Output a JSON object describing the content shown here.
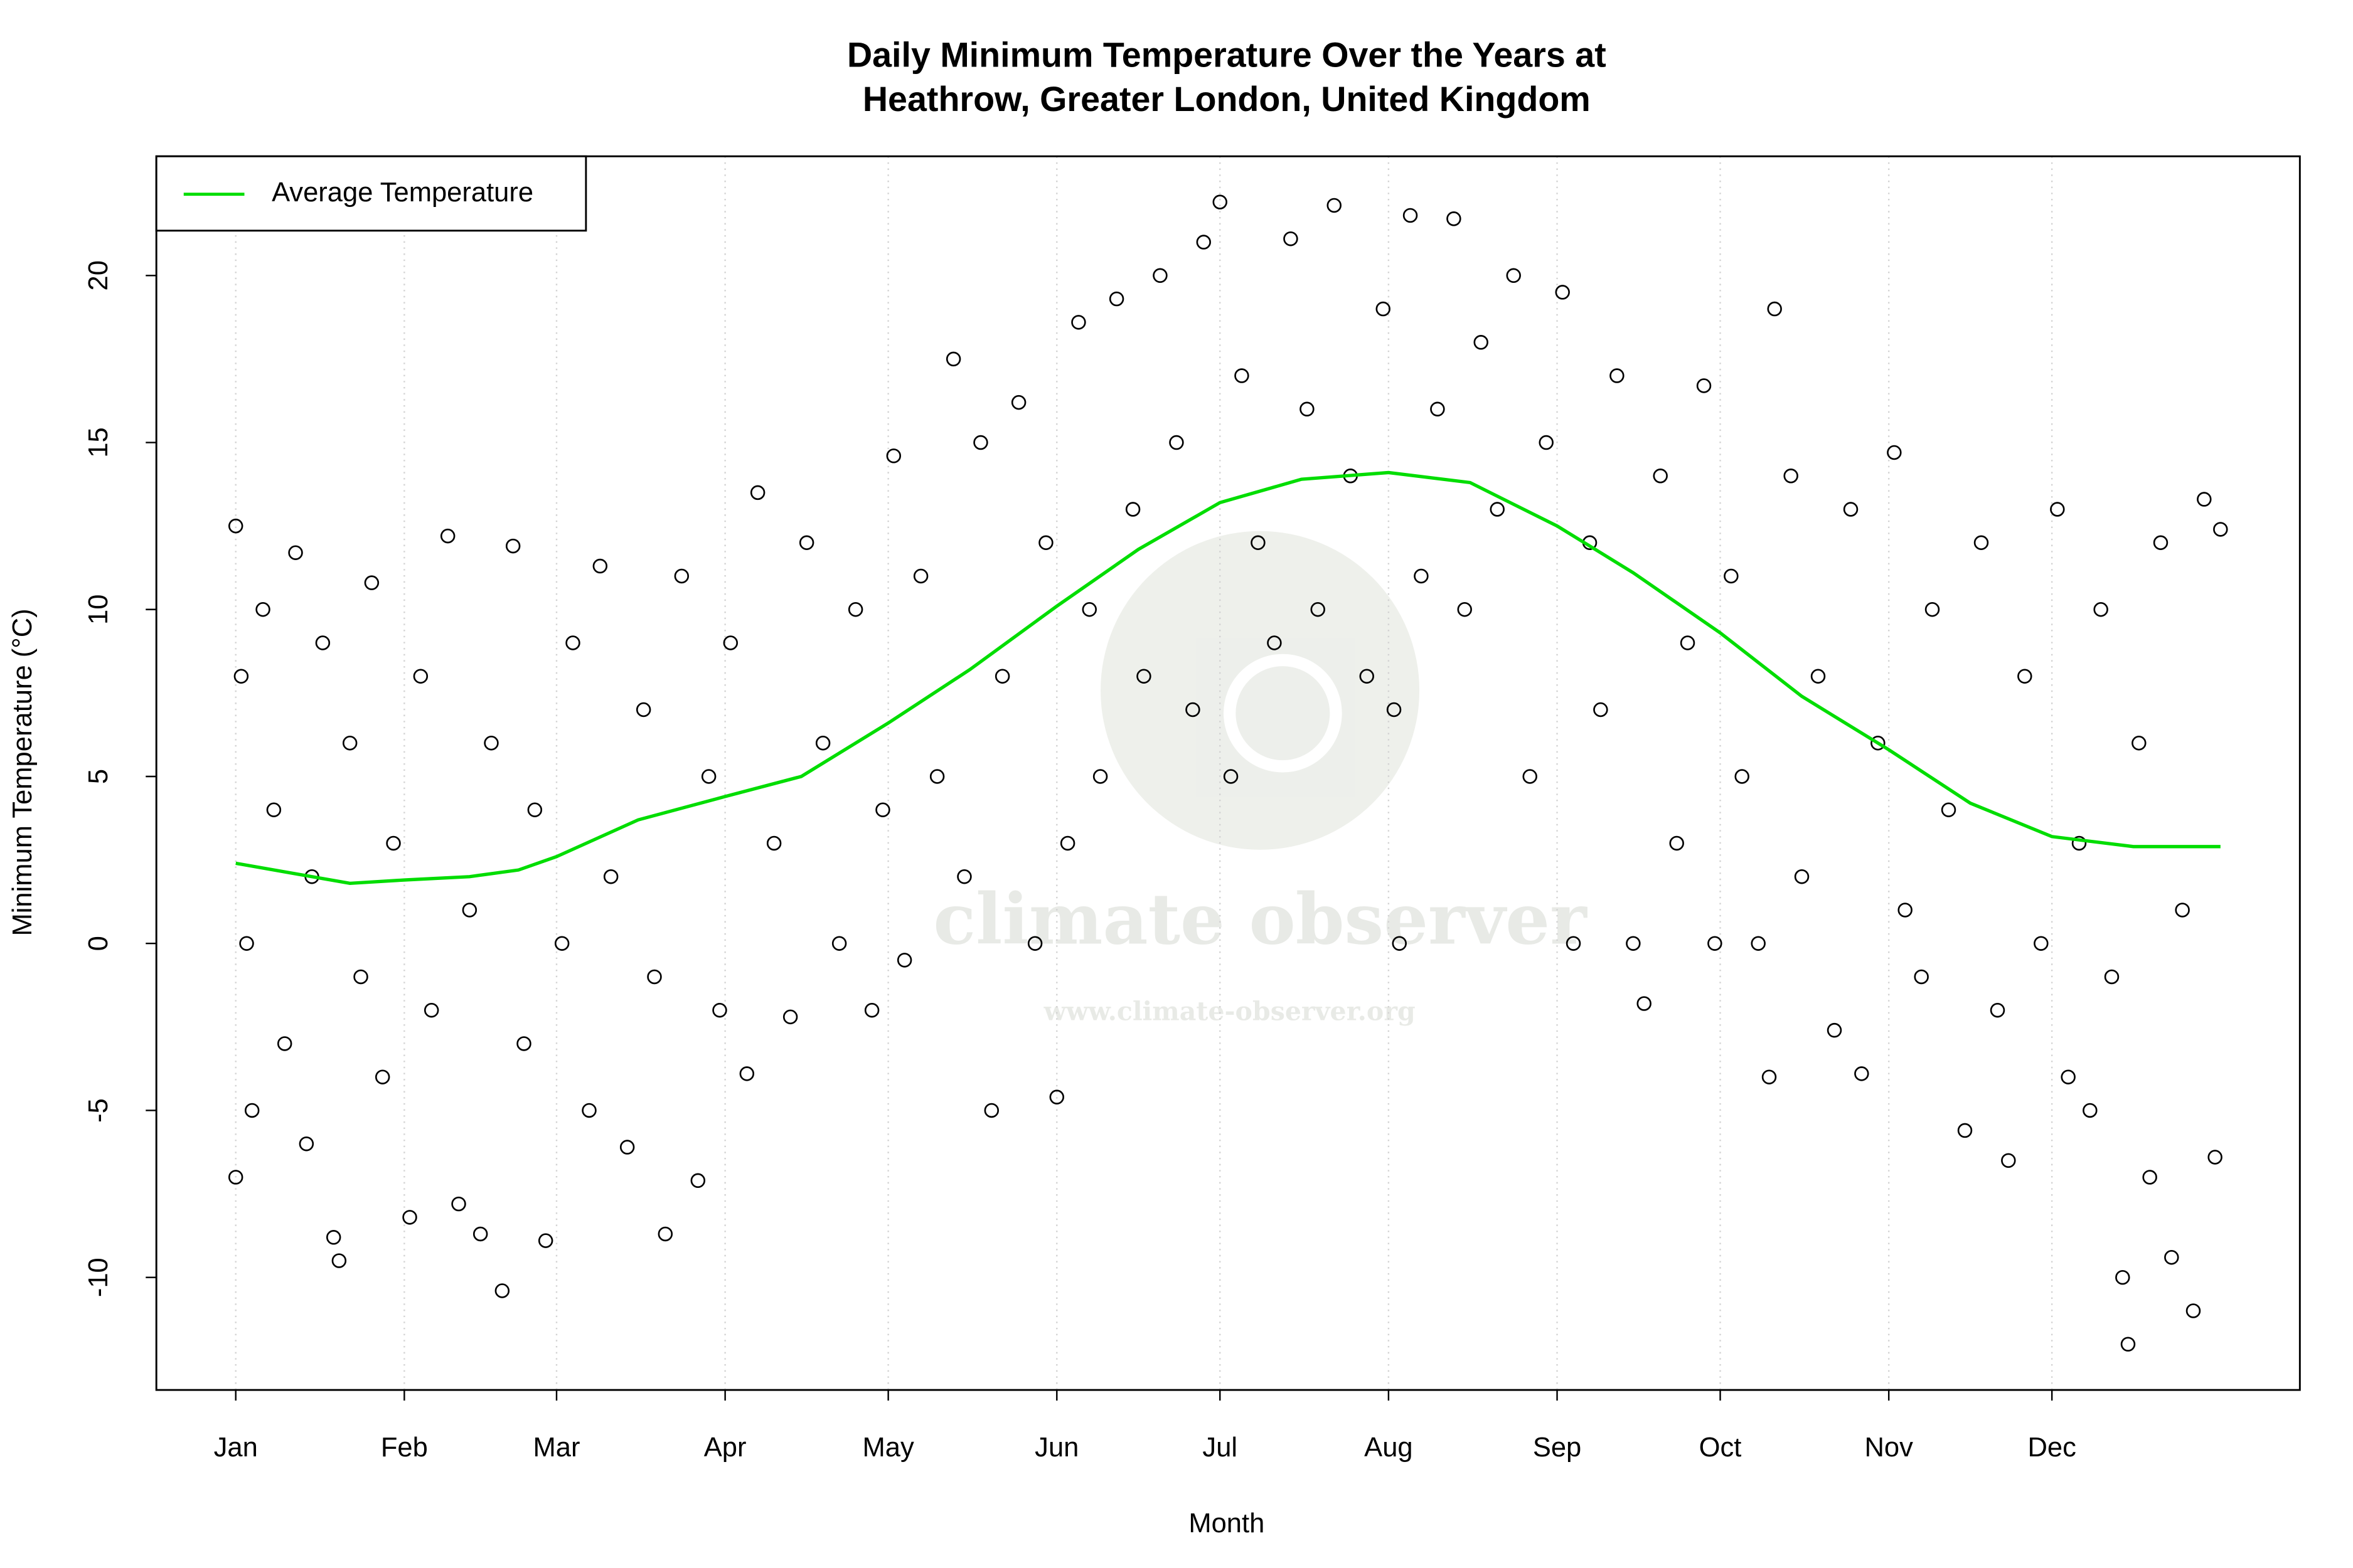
{
  "chart_data": {
    "type": "scatter",
    "title": [
      "Daily Minimum Temperature Over the Years at",
      "Heathrow, Greater London, United Kingdom"
    ],
    "x_label": "Month",
    "y_label": "Minimum Temperature (°C)",
    "watermark": [
      "climate observer",
      "www.climate-observer.org"
    ],
    "xlim": [
      -13.6,
      380.6
    ],
    "ylim": [
      -13.37,
      23.57
    ],
    "xticks": [
      {
        "value": 1,
        "label": "Jan"
      },
      {
        "value": 32,
        "label": "Feb"
      },
      {
        "value": 60,
        "label": "Mar"
      },
      {
        "value": 91,
        "label": "Apr"
      },
      {
        "value": 121,
        "label": "May"
      },
      {
        "value": 152,
        "label": "Jun"
      },
      {
        "value": 182,
        "label": "Jul"
      },
      {
        "value": 213,
        "label": "Aug"
      },
      {
        "value": 244,
        "label": "Sep"
      },
      {
        "value": 274,
        "label": "Oct"
      },
      {
        "value": 305,
        "label": "Nov"
      },
      {
        "value": 335,
        "label": "Dec"
      }
    ],
    "yticks": [
      -10,
      -5,
      0,
      5,
      10,
      15,
      20
    ],
    "grid": true,
    "legend": "top-left",
    "series": [
      {
        "type": "scatter",
        "color": "#000000",
        "x": [
          1,
          1,
          2,
          3,
          4,
          6,
          8,
          10,
          12,
          14,
          15,
          17,
          19,
          20,
          22,
          24,
          26,
          28,
          30,
          33,
          35,
          37,
          40,
          42,
          44,
          46,
          48,
          50,
          52,
          54,
          56,
          58,
          61,
          63,
          66,
          68,
          70,
          73,
          76,
          78,
          80,
          83,
          86,
          88,
          90,
          92,
          95,
          97,
          100,
          103,
          106,
          109,
          112,
          115,
          118,
          120,
          122,
          124,
          127,
          130,
          133,
          135,
          138,
          140,
          142,
          145,
          148,
          150,
          152,
          154,
          156,
          158,
          160,
          163,
          166,
          168,
          171,
          174,
          177,
          179,
          182,
          184,
          186,
          189,
          192,
          195,
          198,
          200,
          203,
          206,
          209,
          212,
          214,
          215,
          217,
          219,
          222,
          225,
          227,
          230,
          233,
          236,
          239,
          242,
          245,
          247,
          250,
          252,
          255,
          258,
          260,
          263,
          266,
          268,
          271,
          273,
          276,
          278,
          281,
          283,
          284,
          287,
          289,
          292,
          295,
          298,
          300,
          303,
          306,
          308,
          311,
          313,
          316,
          319,
          322,
          325,
          327,
          330,
          333,
          336,
          338,
          340,
          342,
          344,
          346,
          348,
          349,
          351,
          353,
          355,
          357,
          359,
          361,
          363,
          365,
          366
        ],
        "y": [
          12.5,
          -7,
          8,
          0,
          -5,
          10,
          4,
          -3,
          11.7,
          -6,
          2,
          9,
          -8.8,
          -9.5,
          6,
          -1,
          10.8,
          -4,
          3,
          -8.2,
          8,
          -2,
          12.2,
          -7.8,
          1,
          -8.7,
          6,
          -10.4,
          11.9,
          -3,
          4,
          -8.9,
          0,
          9,
          -5,
          11.3,
          2,
          -6.1,
          7,
          -1,
          -8.7,
          11,
          -7.1,
          5,
          -2,
          9,
          -3.9,
          13.5,
          3,
          -2.2,
          12,
          6,
          0,
          10,
          -2,
          4,
          14.6,
          -0.5,
          11,
          5,
          17.5,
          2,
          15,
          -5,
          8,
          16.2,
          0,
          12,
          -4.6,
          3,
          18.6,
          10,
          5,
          19.3,
          13,
          8,
          20,
          15,
          7,
          21,
          22.2,
          5,
          17,
          12,
          9,
          21.1,
          16,
          10,
          22.1,
          14,
          8,
          19,
          7,
          0,
          21.8,
          11,
          16,
          21.7,
          10,
          18,
          13,
          20,
          5,
          15,
          19.5,
          0,
          12,
          7,
          17,
          0,
          -1.8,
          14,
          3,
          9,
          16.7,
          0,
          11,
          5,
          0,
          -4,
          19,
          14,
          2,
          8,
          -2.6,
          13,
          -3.9,
          6,
          14.7,
          1,
          -1,
          10,
          4,
          -5.6,
          12,
          -2,
          -6.5,
          8,
          0,
          13,
          -4,
          3,
          -5,
          10,
          -1,
          -10,
          -12,
          6,
          -7,
          12,
          -9.4,
          1,
          -11,
          13.3,
          -6.4,
          12.4
        ]
      },
      {
        "type": "line",
        "name": "Average Temperature",
        "color": "#00dd00",
        "x": [
          1,
          22,
          32,
          44,
          53,
          60,
          75,
          91,
          105,
          121,
          136,
          152,
          167,
          182,
          197,
          213,
          228,
          244,
          258,
          274,
          289,
          305,
          320,
          335,
          350,
          366
        ],
        "y": [
          2.4,
          1.8,
          1.9,
          2.0,
          2.2,
          2.6,
          3.7,
          4.4,
          5.0,
          6.6,
          8.2,
          10.1,
          11.8,
          13.2,
          13.9,
          14.1,
          13.8,
          12.5,
          11.1,
          9.3,
          7.4,
          5.8,
          4.2,
          3.2,
          2.9,
          2.9
        ]
      }
    ]
  }
}
